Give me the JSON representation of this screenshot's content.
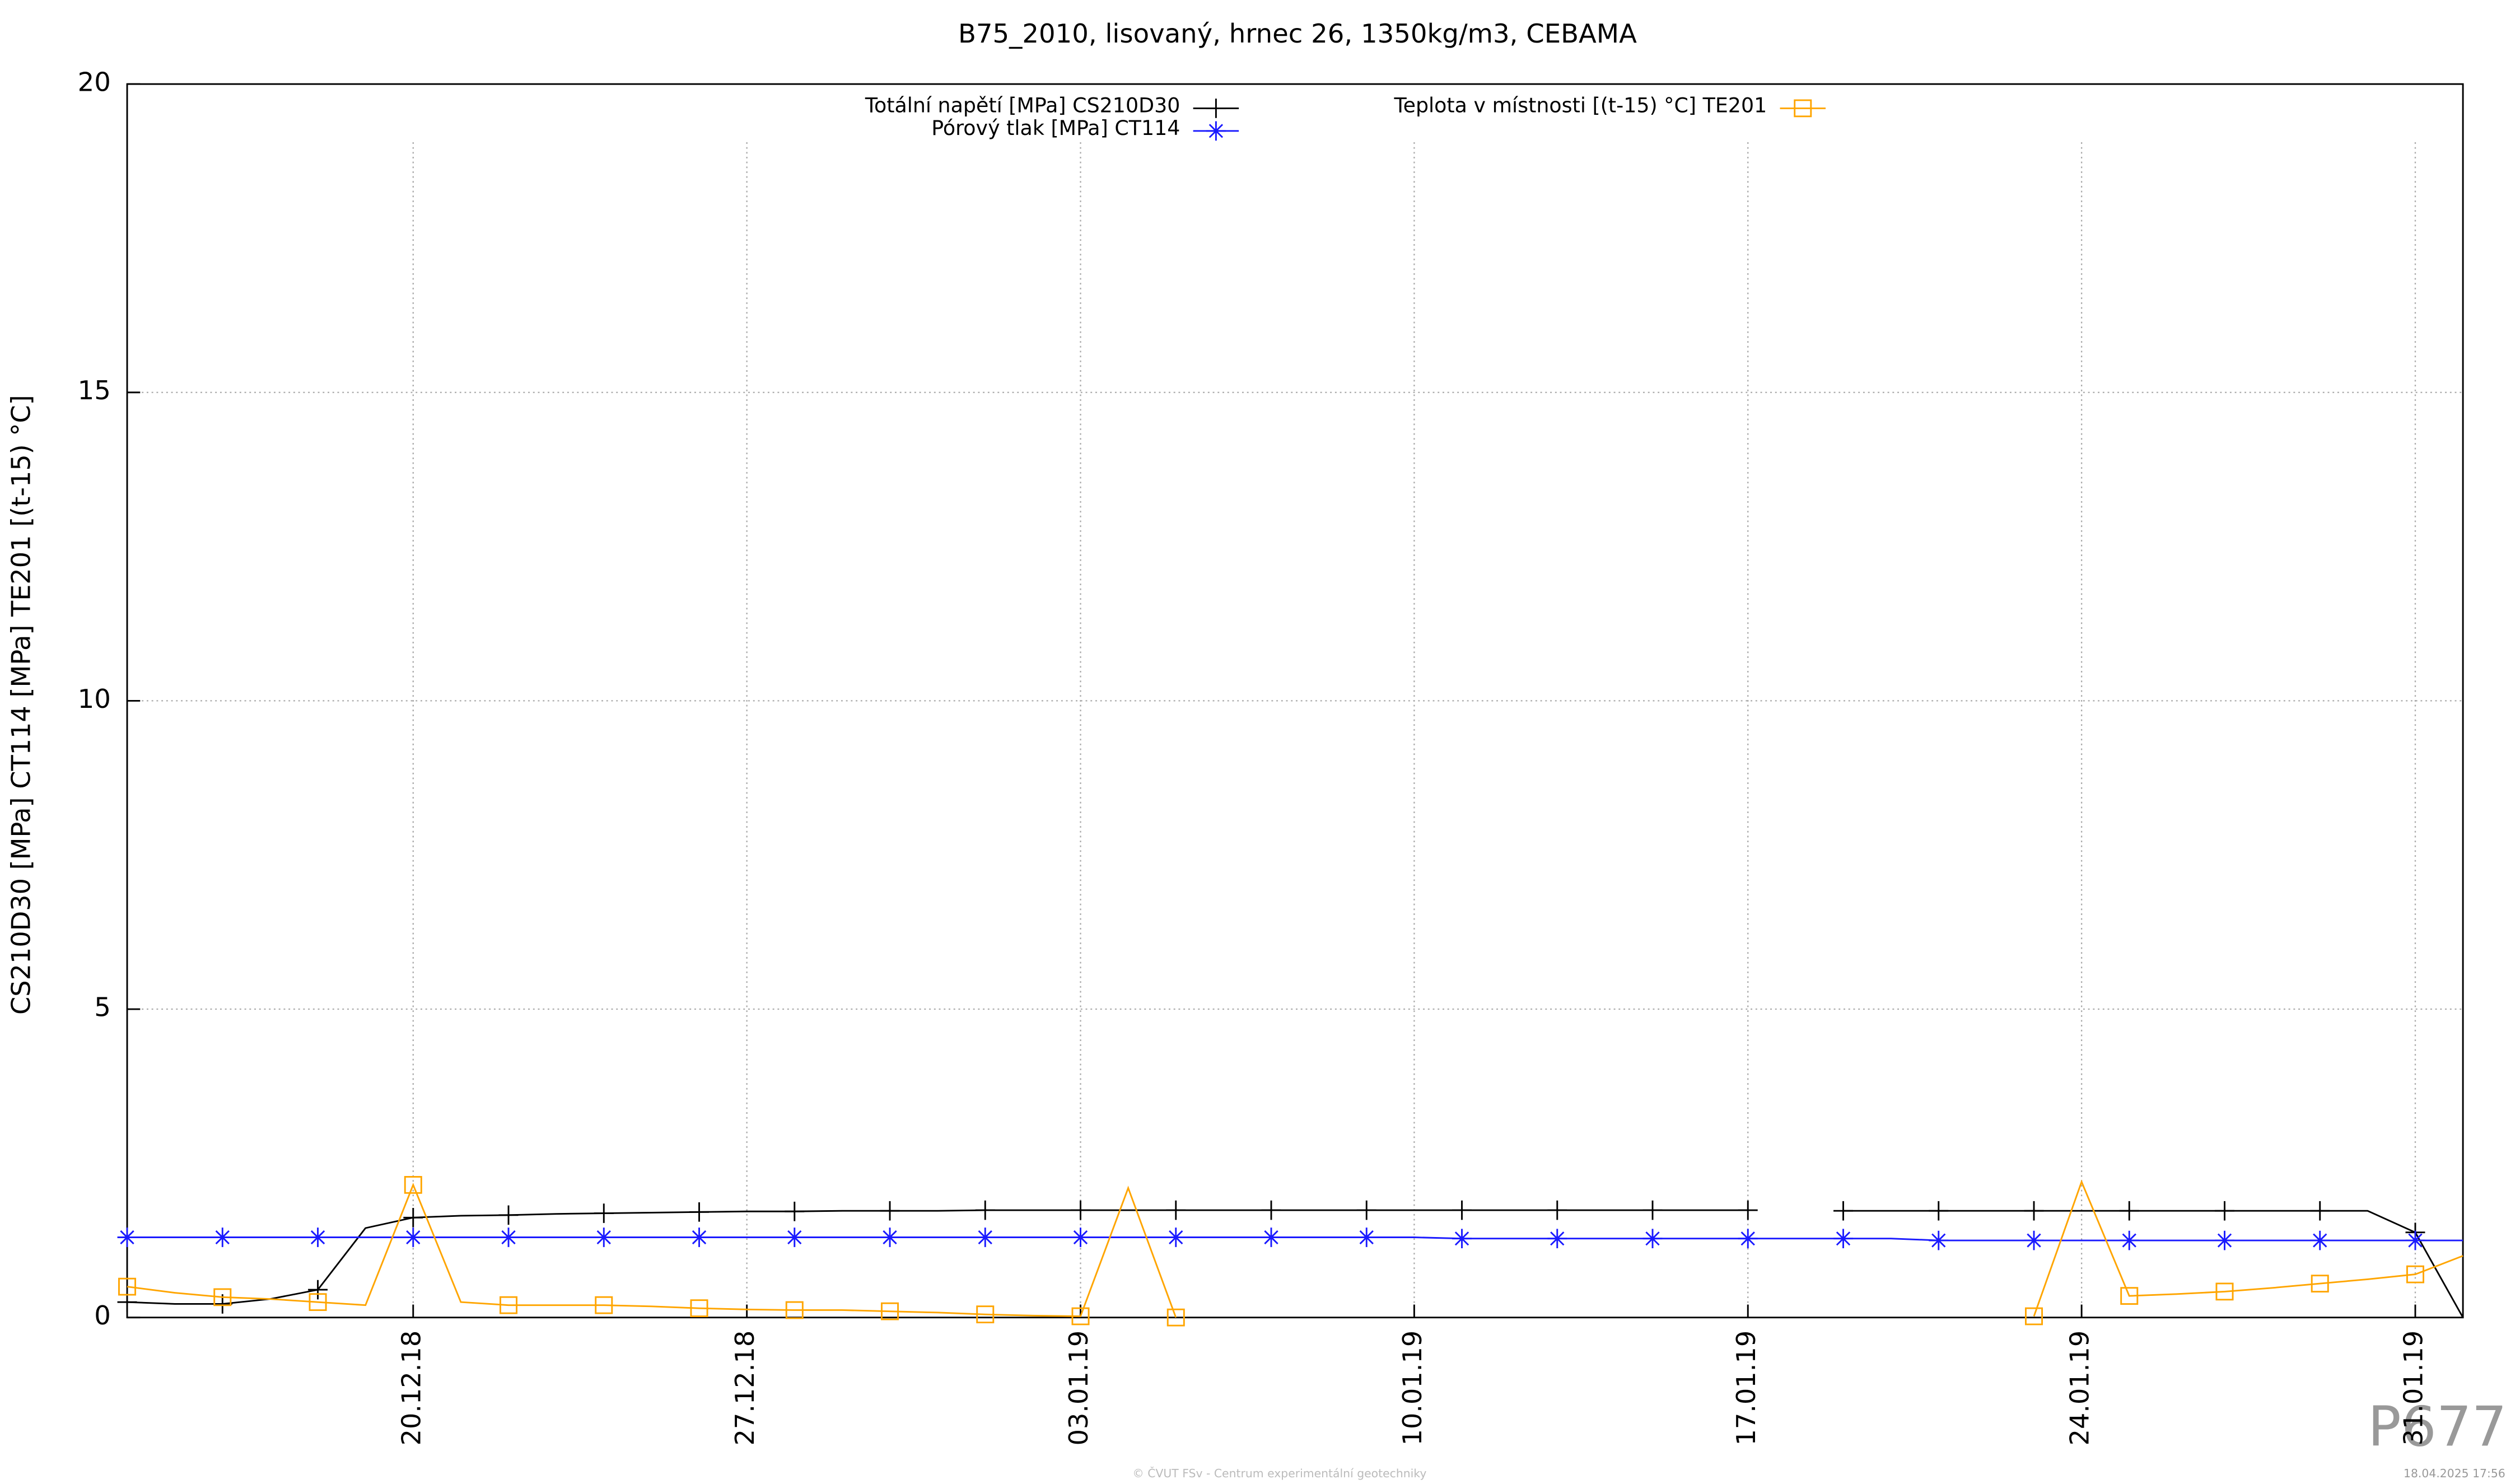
{
  "chart_data": {
    "type": "line",
    "title": "B75_2010, lisovaný, hrnec 26, 1350kg/m3, CEBAMA",
    "y_label": "CS210D30 [MPa] CT114 [MPa] TE201 [(t-15) °C]",
    "x": [
      "2018-12-14",
      "2018-12-15",
      "2018-12-16",
      "2018-12-17",
      "2018-12-18",
      "2018-12-19",
      "2018-12-20",
      "2018-12-21",
      "2018-12-22",
      "2018-12-23",
      "2018-12-24",
      "2018-12-25",
      "2018-12-26",
      "2018-12-27",
      "2018-12-28",
      "2018-12-29",
      "2018-12-30",
      "2018-12-31",
      "2019-01-01",
      "2019-01-02",
      "2019-01-03",
      "2019-01-04",
      "2019-01-05",
      "2019-01-06",
      "2019-01-07",
      "2019-01-08",
      "2019-01-09",
      "2019-01-10",
      "2019-01-11",
      "2019-01-12",
      "2019-01-13",
      "2019-01-14",
      "2019-01-15",
      "2019-01-16",
      "2019-01-17",
      "2019-01-18",
      "2019-01-19",
      "2019-01-20",
      "2019-01-21",
      "2019-01-22",
      "2019-01-23",
      "2019-01-24",
      "2019-01-25",
      "2019-01-26",
      "2019-01-27",
      "2019-01-28",
      "2019-01-29",
      "2019-01-30",
      "2019-01-31",
      "2019-02-01"
    ],
    "series": [
      {
        "name": "Totální napětí [MPa] CS210D30",
        "color": "#000000",
        "marker": "plus",
        "values": [
          0.25,
          0.22,
          0.22,
          0.3,
          0.45,
          1.45,
          1.62,
          1.65,
          1.66,
          1.68,
          1.69,
          1.7,
          1.71,
          1.72,
          1.72,
          1.73,
          1.73,
          1.73,
          1.74,
          1.74,
          1.74,
          1.74,
          1.74,
          1.74,
          1.74,
          1.74,
          1.74,
          1.74,
          1.74,
          1.74,
          1.74,
          1.74,
          1.74,
          1.74,
          1.74,
          null,
          1.73,
          1.73,
          1.73,
          1.73,
          1.73,
          1.73,
          1.73,
          1.73,
          1.73,
          1.73,
          1.73,
          1.73,
          1.38,
          0
        ]
      },
      {
        "name": "Pórový tlak [MPa] CT114",
        "color": "#1a1aff",
        "marker": "star",
        "values": [
          1.3,
          1.3,
          1.3,
          1.3,
          1.3,
          1.3,
          1.3,
          1.3,
          1.3,
          1.3,
          1.3,
          1.3,
          1.3,
          1.3,
          1.3,
          1.3,
          1.3,
          1.3,
          1.3,
          1.3,
          1.3,
          1.3,
          1.3,
          1.3,
          1.3,
          1.3,
          1.3,
          1.3,
          1.28,
          1.28,
          1.28,
          1.28,
          1.28,
          1.28,
          1.28,
          1.28,
          1.28,
          1.28,
          1.25,
          1.25,
          1.25,
          1.25,
          1.25,
          1.25,
          1.25,
          1.25,
          1.25,
          1.25,
          1.25,
          1.25
        ]
      },
      {
        "name": "Teplota v místnosti [(t-15) °C] TE201",
        "color": "#ffa500",
        "marker": "square",
        "values": [
          0.5,
          0.4,
          0.33,
          0.3,
          0.25,
          0.2,
          2.15,
          0.25,
          0.2,
          0.2,
          0.2,
          0.18,
          0.15,
          0.13,
          0.12,
          0.12,
          0.1,
          0.08,
          0.05,
          0.03,
          0.02,
          2.1,
          0,
          null,
          null,
          null,
          null,
          null,
          null,
          null,
          null,
          null,
          null,
          null,
          null,
          null,
          null,
          null,
          null,
          null,
          0.02,
          2.2,
          0.35,
          0.38,
          0.42,
          0.48,
          0.55,
          0.62,
          0.7,
          1.0
        ]
      }
    ],
    "xlim": [
      "2018-12-14",
      "2019-02-01"
    ],
    "xticks": [
      {
        "value": "2018-12-20",
        "label": "20.12.18"
      },
      {
        "value": "2018-12-27",
        "label": "27.12.18"
      },
      {
        "value": "2019-01-03",
        "label": "03.01.19"
      },
      {
        "value": "2019-01-10",
        "label": "10.01.19"
      },
      {
        "value": "2019-01-17",
        "label": "17.01.19"
      },
      {
        "value": "2019-01-24",
        "label": "24.01.19"
      },
      {
        "value": "2019-01-31",
        "label": "31.01.19"
      }
    ],
    "ylim": [
      0,
      20
    ],
    "yticks": [
      0,
      5,
      10,
      15,
      20
    ],
    "grid": true,
    "footer": "© ČVUT FSv - Centrum experimentální geotechniky",
    "timestamp": "18.04.2025 17:56",
    "code": "P677"
  }
}
